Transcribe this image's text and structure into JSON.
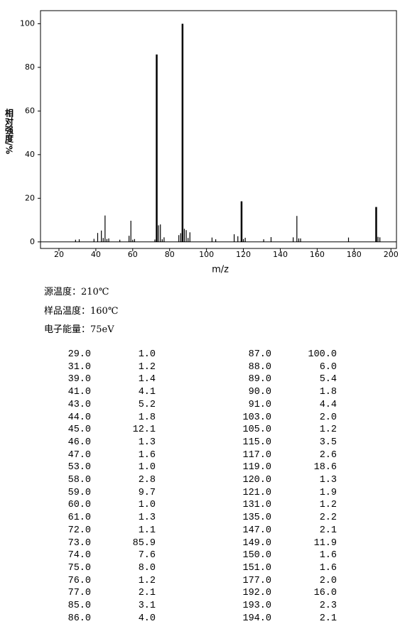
{
  "chart_data": {
    "type": "bar",
    "y_label": "相对强度/%",
    "x_label": "m/z",
    "x": [
      29,
      31,
      39,
      41,
      43,
      44,
      45,
      46,
      47,
      53,
      58,
      59,
      60,
      61,
      72,
      73,
      74,
      75,
      76,
      77,
      85,
      86,
      87,
      88,
      89,
      90,
      91,
      103,
      105,
      115,
      117,
      119,
      120,
      121,
      131,
      135,
      147,
      149,
      150,
      151,
      177,
      192,
      193,
      194
    ],
    "values": [
      1.0,
      1.2,
      1.4,
      4.1,
      5.2,
      1.8,
      12.1,
      1.3,
      1.6,
      1.0,
      2.8,
      9.7,
      1.0,
      1.3,
      1.1,
      85.9,
      7.6,
      8.0,
      1.2,
      2.1,
      3.1,
      4.0,
      100.0,
      6.0,
      5.4,
      1.8,
      4.4,
      2.0,
      1.2,
      3.5,
      2.6,
      18.6,
      1.3,
      1.9,
      1.2,
      2.2,
      2.1,
      11.9,
      1.6,
      1.6,
      2.0,
      16.0,
      2.3,
      2.1
    ],
    "color": "#000000",
    "xlim": [
      10,
      203
    ],
    "ylim": [
      -3,
      106
    ],
    "xticks": [
      20,
      40,
      60,
      80,
      100,
      120,
      140,
      160,
      180,
      200
    ],
    "yticks": [
      0,
      20,
      40,
      60,
      80,
      100
    ]
  },
  "info": [
    "源温度：210℃",
    "样品温度：160℃",
    "电子能量：75eV"
  ],
  "table": {
    "rows": [
      [
        "29.0",
        "1.0",
        "87.0",
        "100.0"
      ],
      [
        "31.0",
        "1.2",
        "88.0",
        "6.0"
      ],
      [
        "39.0",
        "1.4",
        "89.0",
        "5.4"
      ],
      [
        "41.0",
        "4.1",
        "90.0",
        "1.8"
      ],
      [
        "43.0",
        "5.2",
        "91.0",
        "4.4"
      ],
      [
        "44.0",
        "1.8",
        "103.0",
        "2.0"
      ],
      [
        "45.0",
        "12.1",
        "105.0",
        "1.2"
      ],
      [
        "46.0",
        "1.3",
        "115.0",
        "3.5"
      ],
      [
        "47.0",
        "1.6",
        "117.0",
        "2.6"
      ],
      [
        "53.0",
        "1.0",
        "119.0",
        "18.6"
      ],
      [
        "58.0",
        "2.8",
        "120.0",
        "1.3"
      ],
      [
        "59.0",
        "9.7",
        "121.0",
        "1.9"
      ],
      [
        "60.0",
        "1.0",
        "131.0",
        "1.2"
      ],
      [
        "61.0",
        "1.3",
        "135.0",
        "2.2"
      ],
      [
        "72.0",
        "1.1",
        "147.0",
        "2.1"
      ],
      [
        "73.0",
        "85.9",
        "149.0",
        "11.9"
      ],
      [
        "74.0",
        "7.6",
        "150.0",
        "1.6"
      ],
      [
        "75.0",
        "8.0",
        "151.0",
        "1.6"
      ],
      [
        "76.0",
        "1.2",
        "177.0",
        "2.0"
      ],
      [
        "77.0",
        "2.1",
        "192.0",
        "16.0"
      ],
      [
        "85.0",
        "3.1",
        "193.0",
        "2.3"
      ],
      [
        "86.0",
        "4.0",
        "194.0",
        "2.1"
      ]
    ]
  }
}
